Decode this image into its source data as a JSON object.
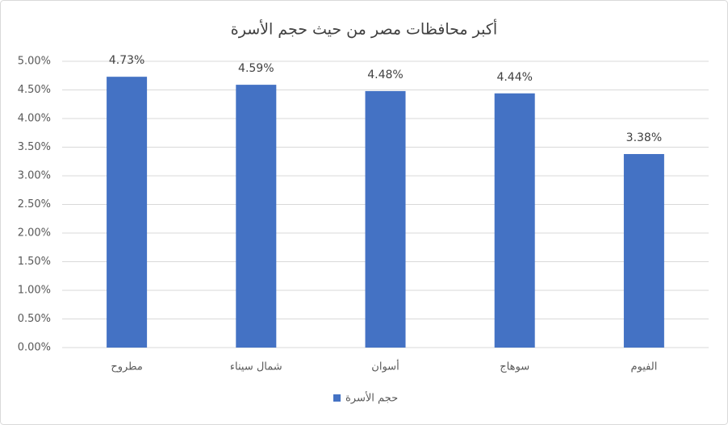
{
  "chart_data": {
    "type": "bar",
    "title": "أكبر محافظات مصر من حيث حجم الأسرة",
    "categories": [
      "مطروح",
      "شمال سيناء",
      "أسوان",
      "سوهاج",
      "الفيوم"
    ],
    "series": [
      {
        "name": "حجم الأسرة",
        "color": "#4472c4",
        "values": [
          4.73,
          4.59,
          4.48,
          4.44,
          3.38
        ],
        "value_labels": [
          "4.73%",
          "4.59%",
          "4.48%",
          "4.44%",
          "3.38%"
        ]
      }
    ],
    "ylim": [
      0,
      5
    ],
    "yticks": [
      {
        "value": 0,
        "label": "0.00%"
      },
      {
        "value": 0.5,
        "label": "0.50%"
      },
      {
        "value": 1,
        "label": "1.00%"
      },
      {
        "value": 1.5,
        "label": "1.50%"
      },
      {
        "value": 2,
        "label": "2.00%"
      },
      {
        "value": 2.5,
        "label": "2.50%"
      },
      {
        "value": 3,
        "label": "3.00%"
      },
      {
        "value": 3.5,
        "label": "3.50%"
      },
      {
        "value": 4,
        "label": "4.00%"
      },
      {
        "value": 4.5,
        "label": "4.50%"
      },
      {
        "value": 5,
        "label": "5.00%"
      }
    ],
    "grid": true,
    "legend": "bottom"
  }
}
